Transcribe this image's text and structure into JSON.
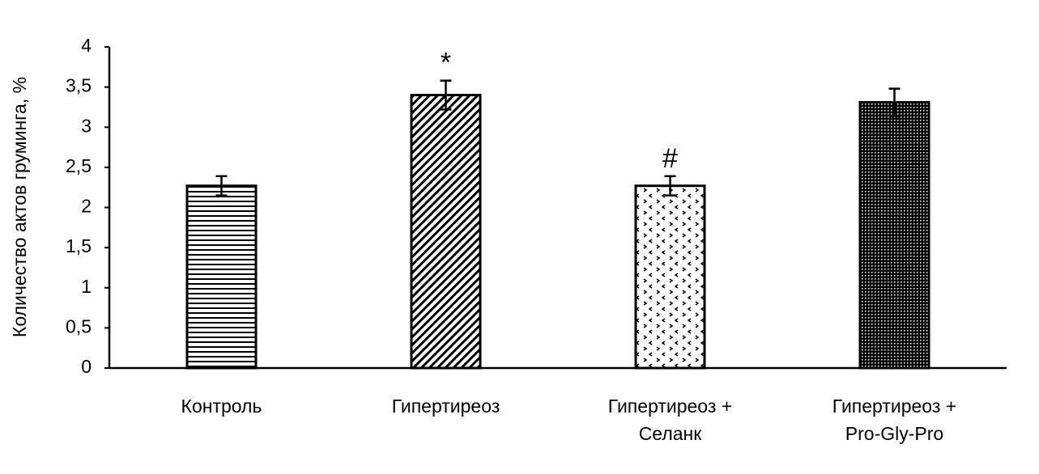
{
  "chart_data": {
    "type": "bar",
    "y_label": "Количество актов груминга, %",
    "categories": [
      "Контроль",
      "Гипертиреоз",
      "Гипертиреоз +\nСеланк",
      "Гипертиреоз +\nPro-Gly-Pro"
    ],
    "values": [
      2.27,
      3.4,
      2.27,
      3.31
    ],
    "errors": [
      0.12,
      0.18,
      0.12,
      0.17
    ],
    "patterns": [
      "horizontal",
      "diagonal",
      "arrows",
      "dense"
    ],
    "color": "#000000",
    "annotations": [
      {
        "text": "*",
        "category": "Гипертиреоз"
      },
      {
        "text": "#",
        "category": "Гипертиреоз +\nСеланк"
      }
    ],
    "ylim": [
      0,
      4
    ],
    "yticks": [
      0,
      {
        "value": 0.5,
        "label": "0,5"
      },
      1,
      {
        "value": 1.5,
        "label": "1,5"
      },
      2,
      {
        "value": 2.5,
        "label": "2,5"
      },
      3,
      {
        "value": 3.5,
        "label": "3,5"
      },
      4
    ],
    "grid": false
  }
}
